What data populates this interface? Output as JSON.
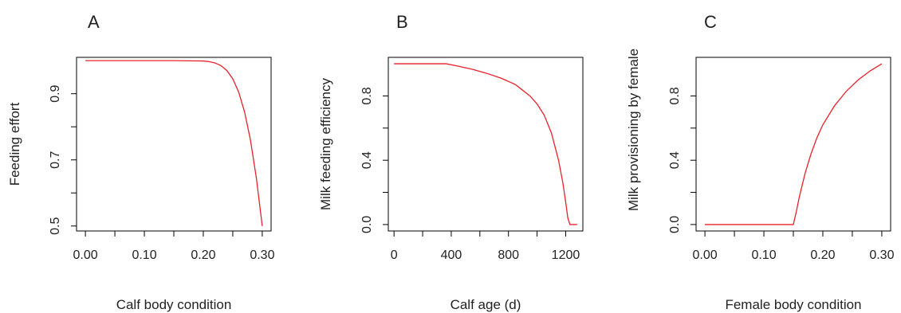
{
  "figure": {
    "accent_color": "#e8212a"
  },
  "chart_data": [
    {
      "type": "line",
      "panel_label": "A",
      "xlabel": "Calf body condition",
      "ylabel": "Feeding effort",
      "xlim": [
        -0.015,
        0.315
      ],
      "ylim": [
        0.485,
        1.01
      ],
      "xticks": [
        0.0,
        0.05,
        0.1,
        0.15,
        0.2,
        0.25,
        0.3
      ],
      "xtick_labels": [
        "0.00",
        "",
        "0.10",
        "",
        "0.20",
        "",
        "0.30"
      ],
      "yticks": [
        0.5,
        0.6,
        0.7,
        0.8,
        0.9
      ],
      "ytick_labels": [
        "0.5",
        "",
        "0.7",
        "",
        "0.9"
      ],
      "series": [
        {
          "color": "#e8212a",
          "x": [
            0.0,
            0.05,
            0.1,
            0.15,
            0.18,
            0.2,
            0.21,
            0.22,
            0.23,
            0.24,
            0.25,
            0.26,
            0.27,
            0.28,
            0.29,
            0.3
          ],
          "y": [
            1.0,
            1.0,
            1.0,
            1.0,
            0.9995,
            0.999,
            0.997,
            0.993,
            0.985,
            0.97,
            0.945,
            0.905,
            0.845,
            0.76,
            0.645,
            0.5
          ]
        }
      ]
    },
    {
      "type": "line",
      "panel_label": "B",
      "xlabel": "Calf age (d)",
      "ylabel": "Milk feeding efficiency",
      "xlim": [
        -40,
        1320
      ],
      "ylim": [
        -0.04,
        1.04
      ],
      "xticks": [
        0,
        200,
        400,
        600,
        800,
        1000,
        1200
      ],
      "xtick_labels": [
        "0",
        "",
        "400",
        "",
        "800",
        "",
        "1200"
      ],
      "yticks": [
        0.0,
        0.2,
        0.4,
        0.6,
        0.8
      ],
      "ytick_labels": [
        "0.0",
        "",
        "0.4",
        "",
        "0.8"
      ],
      "series": [
        {
          "color": "#e8212a",
          "x": [
            0,
            200,
            365,
            450,
            550,
            650,
            750,
            850,
            950,
            1000,
            1050,
            1100,
            1150,
            1180,
            1200,
            1215,
            1230,
            1250,
            1280
          ],
          "y": [
            1.0,
            1.0,
            1.0,
            0.985,
            0.965,
            0.94,
            0.91,
            0.87,
            0.8,
            0.75,
            0.68,
            0.57,
            0.4,
            0.26,
            0.14,
            0.04,
            0.0,
            0.0,
            0.0
          ]
        }
      ]
    },
    {
      "type": "line",
      "panel_label": "C",
      "xlabel": "Female body condition",
      "ylabel": "Milk provisioning by female",
      "xlim": [
        -0.015,
        0.315
      ],
      "ylim": [
        -0.04,
        1.04
      ],
      "xticks": [
        0.0,
        0.05,
        0.1,
        0.15,
        0.2,
        0.25,
        0.3
      ],
      "xtick_labels": [
        "0.00",
        "",
        "0.10",
        "",
        "0.20",
        "",
        "0.30"
      ],
      "yticks": [
        0.0,
        0.2,
        0.4,
        0.6,
        0.8
      ],
      "ytick_labels": [
        "0.0",
        "",
        "0.4",
        "",
        "0.8"
      ],
      "series": [
        {
          "color": "#e8212a",
          "x": [
            0.0,
            0.05,
            0.1,
            0.145,
            0.15,
            0.155,
            0.16,
            0.17,
            0.18,
            0.19,
            0.2,
            0.22,
            0.24,
            0.26,
            0.28,
            0.3
          ],
          "y": [
            0.0,
            0.0,
            0.0,
            0.0,
            0.0,
            0.08,
            0.17,
            0.32,
            0.44,
            0.54,
            0.62,
            0.74,
            0.83,
            0.9,
            0.955,
            1.0
          ]
        }
      ]
    }
  ]
}
